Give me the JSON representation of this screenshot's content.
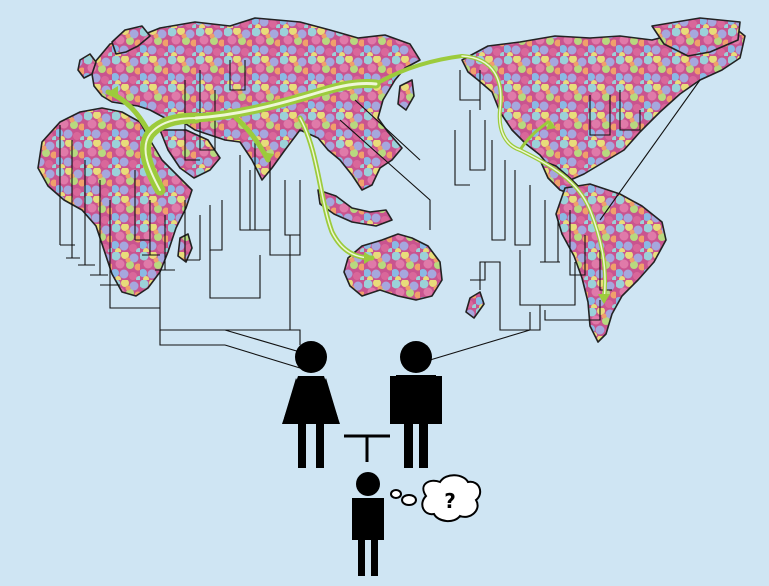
{
  "colors": {
    "background": "#cfe5f3",
    "land_pattern": [
      "#c9548f",
      "#e07aa9",
      "#9bd1d9",
      "#a6a7dd",
      "#e8dc7a",
      "#b7d97f",
      "#f0a06b",
      "#8ab9e4",
      "#d9679a"
    ],
    "migration_route": "#9ccb3c",
    "tree_lines": "#111111",
    "figures": "#000000"
  },
  "icons": {
    "woman": "woman-silhouette-icon",
    "man": "man-silhouette-icon",
    "child": "child-silhouette-icon",
    "thought": "thought-bubble-icon"
  },
  "thought_bubble": {
    "text": "?"
  }
}
